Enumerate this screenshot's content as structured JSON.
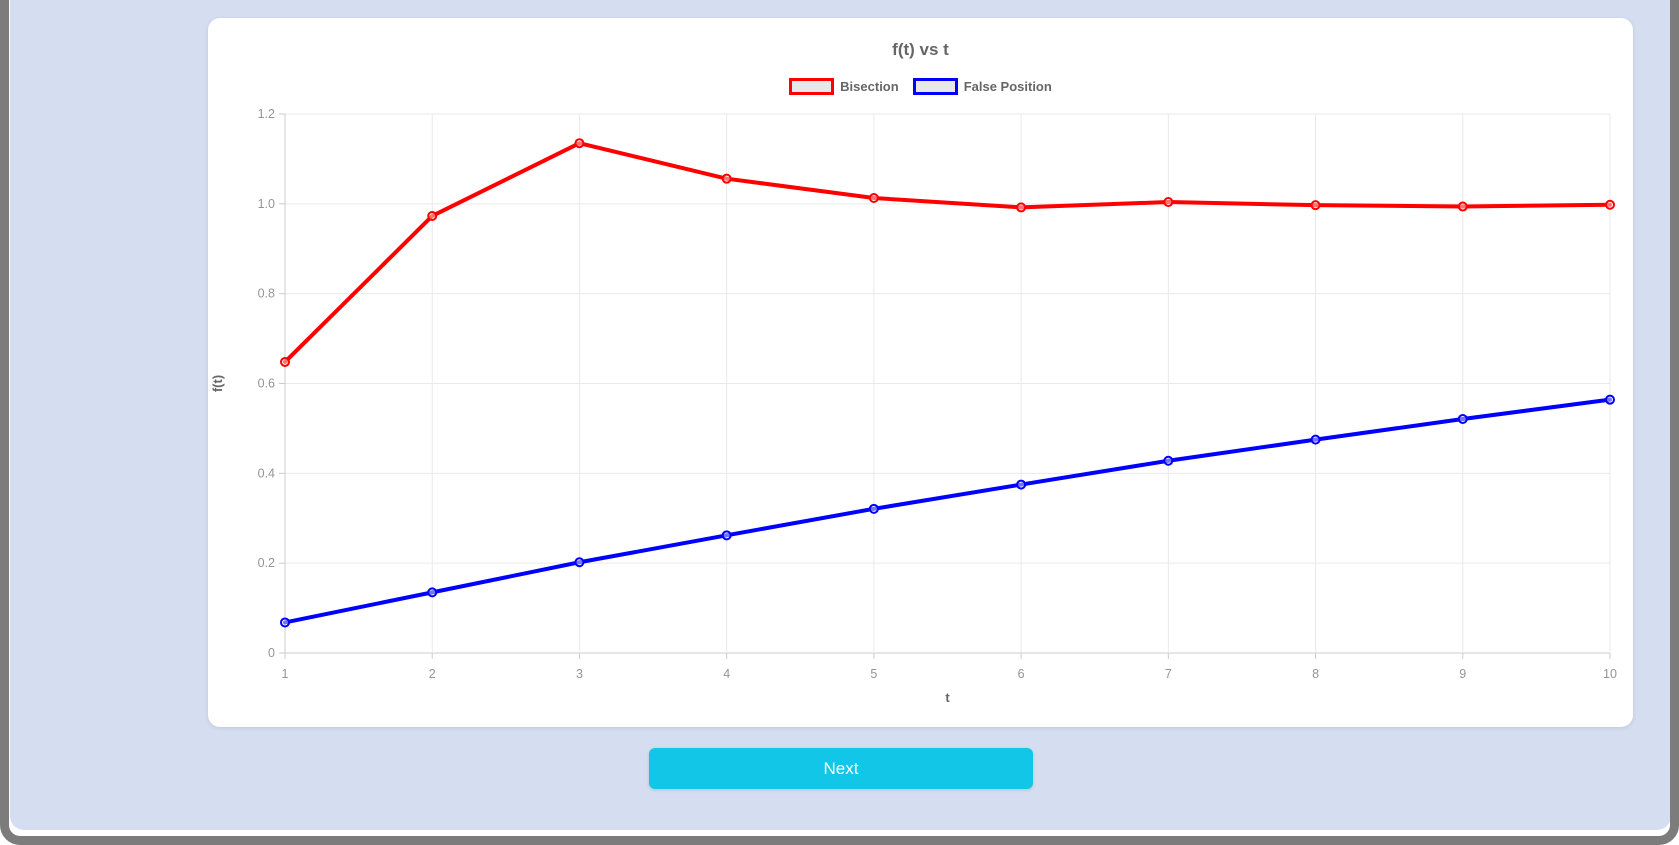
{
  "window": {
    "frame_color": "#7c7c7c",
    "panel_background": "#d4def0"
  },
  "chart_data": {
    "type": "line",
    "title": "f(t) vs t",
    "xlabel": "t",
    "ylabel": "f(t)",
    "x": [
      1,
      2,
      3,
      4,
      5,
      6,
      7,
      8,
      9,
      10
    ],
    "x_ticks": [
      "1",
      "2",
      "3",
      "4",
      "5",
      "6",
      "7",
      "8",
      "9",
      "10"
    ],
    "y_ticks": [
      "0",
      "0.2",
      "0.4",
      "0.6",
      "0.8",
      "1.0",
      "1.2"
    ],
    "xlim": [
      1,
      10
    ],
    "ylim": [
      0,
      1.2
    ],
    "grid": true,
    "legend_position": "top",
    "series": [
      {
        "name": "Bisection",
        "color": "#ff0000",
        "values": [
          0.648,
          0.973,
          1.135,
          1.056,
          1.013,
          0.992,
          1.004,
          0.997,
          0.994,
          0.998
        ]
      },
      {
        "name": "False Position",
        "color": "#0000ff",
        "values": [
          0.068,
          0.135,
          0.202,
          0.262,
          0.321,
          0.375,
          0.428,
          0.475,
          0.521,
          0.564
        ]
      }
    ],
    "styles": {
      "grid_color": "#e9e9e9",
      "axis_color": "#cccccc",
      "tick_label_color": "#949494",
      "title_color": "#666666",
      "legend_box_fill": "#e8e8e8",
      "line_width": 4,
      "point_radius": 4
    }
  },
  "footer": {
    "next_button_label": "Next",
    "button_color": "#12c6e8"
  }
}
